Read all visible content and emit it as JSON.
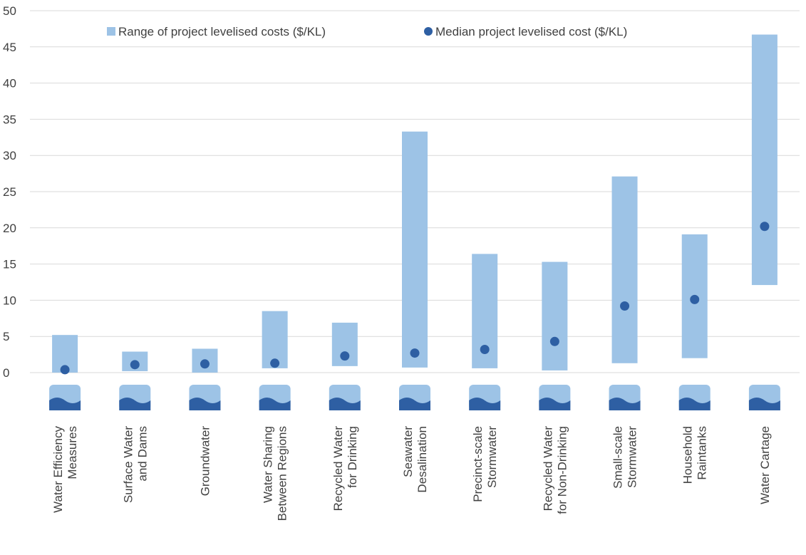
{
  "chart_data": {
    "type": "range",
    "categories": [
      [
        "Water Efficiency",
        "Measures"
      ],
      [
        "Surface Water",
        "and Dams"
      ],
      [
        "Groundwater"
      ],
      [
        "Water Sharing",
        "Between Regions"
      ],
      [
        "Recycled Water",
        "for Drinking"
      ],
      [
        "Seawater",
        "Desalination"
      ],
      [
        "Precinct-scale",
        "Stormwater"
      ],
      [
        "Recycled Water",
        "for Non-Drinking"
      ],
      [
        "Small-scale",
        "Stormwater"
      ],
      [
        "Household",
        "Raintanks"
      ],
      [
        "Water Cartage"
      ]
    ],
    "series": [
      {
        "name": "Range of project levelised costs ($/KL)",
        "color": "#9dc3e6",
        "low": [
          0,
          0.2,
          0,
          0.6,
          0.9,
          0.7,
          0.6,
          0.3,
          1.3,
          2.0,
          12.1
        ],
        "high": [
          5.2,
          2.9,
          3.3,
          8.5,
          6.9,
          33.3,
          16.4,
          15.3,
          27.1,
          19.1,
          46.7
        ]
      },
      {
        "name": "Median project levelised cost ($/KL)",
        "color": "#2e5fa3",
        "values": [
          0.4,
          1.1,
          1.2,
          1.3,
          2.3,
          2.7,
          3.2,
          4.3,
          9.2,
          10.1,
          20.2
        ]
      }
    ],
    "ylim": [
      0,
      50
    ],
    "yticks": [
      0,
      5,
      10,
      15,
      20,
      25,
      30,
      35,
      40,
      45,
      50
    ],
    "grid": true,
    "legend": "top"
  }
}
